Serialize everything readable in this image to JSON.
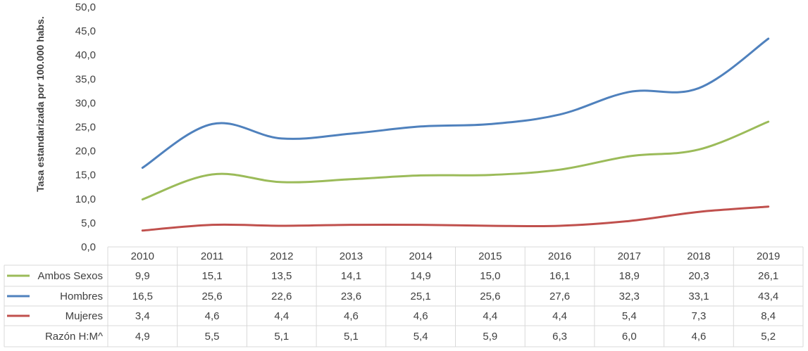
{
  "chart_data": {
    "type": "line",
    "title": "",
    "xlabel": "",
    "ylabel": "Tasa estandarizada por 100.000 habs.",
    "ylim": [
      0,
      50
    ],
    "yticks": [
      "0,0",
      "5,0",
      "10,0",
      "15,0",
      "20,0",
      "25,0",
      "30,0",
      "35,0",
      "40,0",
      "45,0",
      "50,0"
    ],
    "grid": false,
    "legend": "data-table",
    "categories": [
      "2010",
      "2011",
      "2012",
      "2013",
      "2014",
      "2015",
      "2016",
      "2017",
      "2018",
      "2019"
    ],
    "series": [
      {
        "name": "Ambos Sexos",
        "color": "#9BBB59",
        "values": [
          9.9,
          15.1,
          13.5,
          14.1,
          14.9,
          15.0,
          16.1,
          18.9,
          20.3,
          26.1
        ],
        "labels": [
          "9,9",
          "15,1",
          "13,5",
          "14,1",
          "14,9",
          "15,0",
          "16,1",
          "18,9",
          "20,3",
          "26,1"
        ]
      },
      {
        "name": "Hombres",
        "color": "#4F81BD",
        "values": [
          16.5,
          25.6,
          22.6,
          23.6,
          25.1,
          25.6,
          27.6,
          32.3,
          33.1,
          43.4
        ],
        "labels": [
          "16,5",
          "25,6",
          "22,6",
          "23,6",
          "25,1",
          "25,6",
          "27,6",
          "32,3",
          "33,1",
          "43,4"
        ]
      },
      {
        "name": "Mujeres",
        "color": "#C0504D",
        "values": [
          3.4,
          4.6,
          4.4,
          4.6,
          4.6,
          4.4,
          4.4,
          5.4,
          7.3,
          8.4
        ],
        "labels": [
          "3,4",
          "4,6",
          "4,4",
          "4,6",
          "4,6",
          "4,4",
          "4,4",
          "5,4",
          "7,3",
          "8,4"
        ]
      }
    ],
    "extra_rows": [
      {
        "name": "Razón H:M^",
        "labels": [
          "4,9",
          "5,5",
          "5,1",
          "5,1",
          "5,4",
          "5,9",
          "6,3",
          "6,0",
          "4,6",
          "5,2"
        ]
      }
    ]
  }
}
